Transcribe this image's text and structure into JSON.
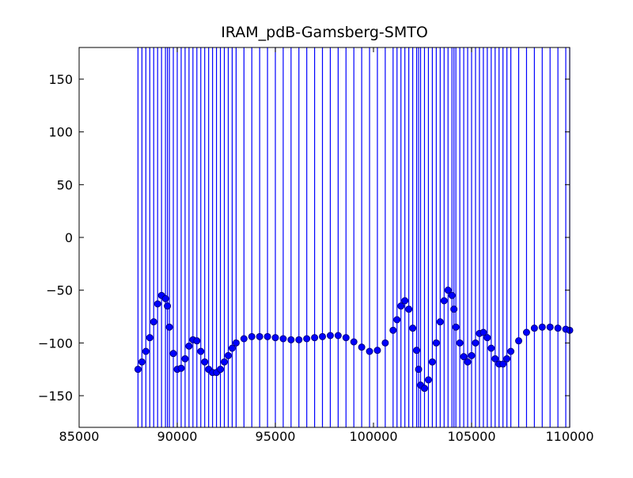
{
  "chart_data": {
    "type": "scatter",
    "title": "IRAM_pdB-Gamsberg-SMTO",
    "color": "#0000ff",
    "x": [
      88000,
      88200,
      88400,
      88600,
      88800,
      89000,
      89200,
      89400,
      89500,
      89600,
      89800,
      90000,
      90200,
      90400,
      90600,
      90800,
      91000,
      91200,
      91400,
      91600,
      91800,
      92000,
      92200,
      92400,
      92600,
      92800,
      93000,
      93400,
      93800,
      94200,
      94600,
      95000,
      95400,
      95800,
      96200,
      96600,
      97000,
      97400,
      97800,
      98200,
      98600,
      99000,
      99400,
      99800,
      100200,
      100600,
      101000,
      101200,
      101400,
      101600,
      101800,
      102000,
      102200,
      102300,
      102400,
      102600,
      102800,
      103000,
      103200,
      103400,
      103600,
      103800,
      104000,
      104100,
      104200,
      104400,
      104600,
      104800,
      105000,
      105200,
      105400,
      105600,
      105800,
      106000,
      106200,
      106400,
      106600,
      106800,
      107000,
      107400,
      107800,
      108200,
      108600,
      109000,
      109400,
      109800,
      110000
    ],
    "values": [
      -125,
      -118,
      -108,
      -95,
      -80,
      -63,
      -55,
      -58,
      -65,
      -85,
      -110,
      -125,
      -124,
      -115,
      -103,
      -97,
      -98,
      -108,
      -118,
      -125,
      -128,
      -128,
      -125,
      -118,
      -112,
      -105,
      -100,
      -96,
      -94,
      -94,
      -94,
      -95,
      -96,
      -97,
      -97,
      -96,
      -95,
      -94,
      -93,
      -93,
      -95,
      -99,
      -104,
      -108,
      -107,
      -100,
      -88,
      -78,
      -65,
      -60,
      -68,
      -86,
      -107,
      -125,
      -140,
      -143,
      -135,
      -118,
      -100,
      -80,
      -60,
      -50,
      -55,
      -68,
      -85,
      -100,
      -113,
      -118,
      -112,
      -100,
      -91,
      -90,
      -95,
      -105,
      -115,
      -120,
      -120,
      -115,
      -108,
      -98,
      -90,
      -86,
      -85,
      -85,
      -86,
      -87,
      -88
    ],
    "xlim": [
      85000,
      110000
    ],
    "xticks": [
      85000,
      90000,
      95000,
      100000,
      105000,
      110000
    ],
    "ylim": [
      -180,
      180
    ],
    "yticks": [
      {
        "value": -150,
        "label": "−150"
      },
      {
        "value": -100,
        "label": "−100"
      },
      {
        "value": -50,
        "label": "−50"
      },
      0,
      50,
      100,
      150
    ]
  }
}
